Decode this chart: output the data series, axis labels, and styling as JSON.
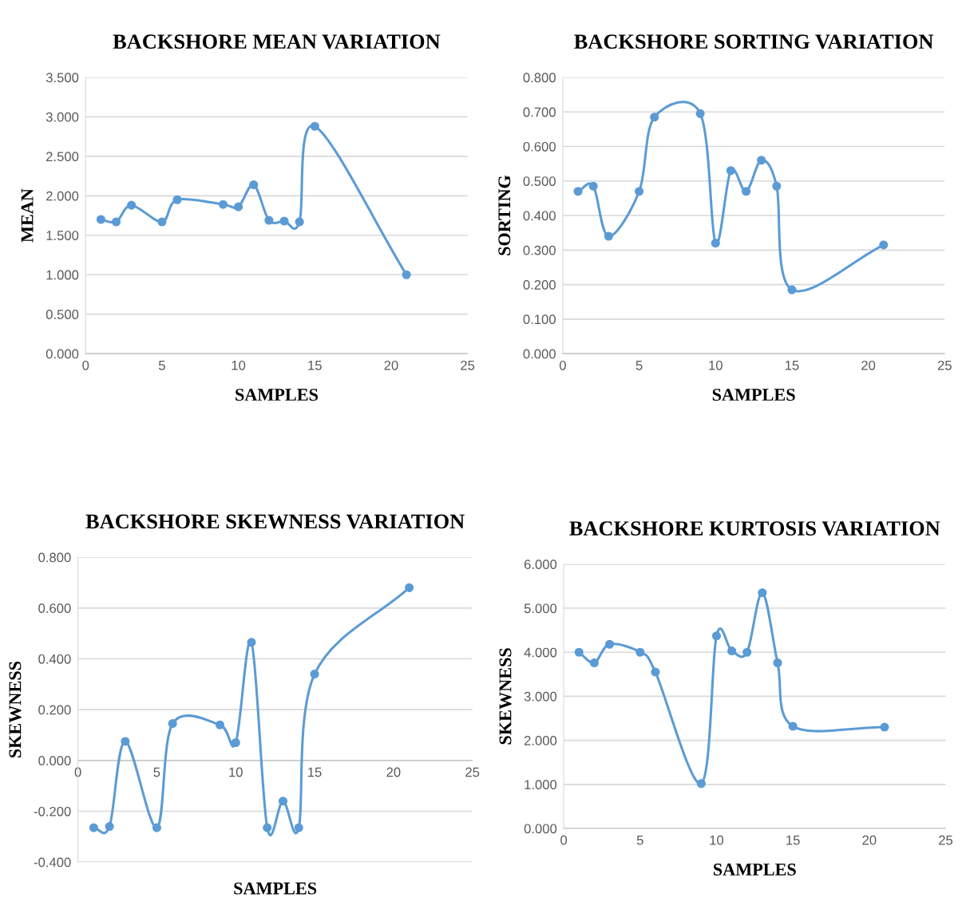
{
  "chart_data": [
    {
      "type": "line",
      "title": "BACKSHORE MEAN VARIATION",
      "xlabel": "SAMPLES",
      "ylabel": "MEAN",
      "x": [
        1,
        2,
        3,
        5,
        6,
        9,
        10,
        11,
        12,
        13,
        14,
        15,
        21
      ],
      "series": [
        {
          "color": "#5b9bd5",
          "values": [
            1.7,
            1.67,
            1.88,
            1.67,
            1.95,
            1.89,
            1.86,
            2.14,
            1.69,
            1.68,
            1.67,
            2.88,
            1.0
          ]
        }
      ],
      "xlim": [
        0,
        25
      ],
      "xticks": [
        0,
        5,
        10,
        15,
        20,
        25
      ],
      "ylim": [
        0,
        3.5
      ],
      "yticks": [
        {
          "value": 0,
          "label": "0.000"
        },
        {
          "value": 0.5,
          "label": "0.500"
        },
        {
          "value": 1,
          "label": "1.000"
        },
        {
          "value": 1.5,
          "label": "1.500"
        },
        {
          "value": 2,
          "label": "2.000"
        },
        {
          "value": 2.5,
          "label": "2.500"
        },
        {
          "value": 3,
          "label": "3.000"
        },
        {
          "value": 3.5,
          "label": "3.500"
        }
      ],
      "grid": "y",
      "marker": "circle",
      "line_style": "solid"
    },
    {
      "type": "line",
      "title": "BACKSHORE SORTING VARIATION",
      "xlabel": "SAMPLES",
      "ylabel": "SORTING",
      "x": [
        1,
        2,
        3,
        5,
        6,
        9,
        10,
        11,
        12,
        13,
        14,
        15,
        21
      ],
      "series": [
        {
          "color": "#5b9bd5",
          "values": [
            0.47,
            0.485,
            0.34,
            0.47,
            0.685,
            0.695,
            0.32,
            0.53,
            0.47,
            0.56,
            0.485,
            0.185,
            0.315
          ]
        }
      ],
      "xlim": [
        0,
        25
      ],
      "xticks": [
        0,
        5,
        10,
        15,
        20,
        25
      ],
      "ylim": [
        0,
        0.8
      ],
      "yticks": [
        {
          "value": 0,
          "label": "0.000"
        },
        {
          "value": 0.1,
          "label": "0.100"
        },
        {
          "value": 0.2,
          "label": "0.200"
        },
        {
          "value": 0.3,
          "label": "0.300"
        },
        {
          "value": 0.4,
          "label": "0.400"
        },
        {
          "value": 0.5,
          "label": "0.500"
        },
        {
          "value": 0.6,
          "label": "0.600"
        },
        {
          "value": 0.7,
          "label": "0.700"
        },
        {
          "value": 0.8,
          "label": "0.800"
        }
      ],
      "grid": "y",
      "marker": "circle",
      "line_style": "solid"
    },
    {
      "type": "line",
      "title": "BACKSHORE SKEWNESS VARIATION",
      "xlabel": "SAMPLES",
      "ylabel": "SKEWNESS",
      "x": [
        1,
        2,
        3,
        5,
        6,
        9,
        10,
        11,
        12,
        13,
        14,
        15,
        21
      ],
      "series": [
        {
          "color": "#5b9bd5",
          "values": [
            -0.265,
            -0.26,
            0.075,
            -0.265,
            0.145,
            0.14,
            0.07,
            0.465,
            -0.265,
            -0.16,
            -0.265,
            0.34,
            0.68
          ]
        }
      ],
      "xlim": [
        0,
        25
      ],
      "xticks": [
        0,
        5,
        10,
        15,
        20,
        25
      ],
      "ylim": [
        -0.4,
        0.8
      ],
      "yticks": [
        {
          "value": -0.4,
          "label": "-0.400"
        },
        {
          "value": -0.2,
          "label": "-0.200"
        },
        {
          "value": 0,
          "label": "0.000"
        },
        {
          "value": 0.2,
          "label": "0.200"
        },
        {
          "value": 0.4,
          "label": "0.400"
        },
        {
          "value": 0.6,
          "label": "0.600"
        },
        {
          "value": 0.8,
          "label": "0.800"
        }
      ],
      "grid": "y",
      "marker": "circle",
      "line_style": "solid"
    },
    {
      "type": "line",
      "title": "BACKSHORE KURTOSIS VARIATION",
      "xlabel": "SAMPLES",
      "ylabel": "SKEWNESS",
      "x": [
        1,
        2,
        3,
        5,
        6,
        9,
        10,
        11,
        12,
        13,
        14,
        15,
        21
      ],
      "series": [
        {
          "color": "#5b9bd5",
          "values": [
            4.0,
            3.76,
            4.18,
            4.0,
            3.55,
            1.02,
            4.37,
            4.03,
            4.0,
            5.35,
            3.76,
            2.32,
            2.3
          ]
        }
      ],
      "xlim": [
        0,
        25
      ],
      "xticks": [
        0,
        5,
        10,
        15,
        20,
        25
      ],
      "ylim": [
        0,
        6
      ],
      "yticks": [
        {
          "value": 0,
          "label": "0.000"
        },
        {
          "value": 1,
          "label": "1.000"
        },
        {
          "value": 2,
          "label": "2.000"
        },
        {
          "value": 3,
          "label": "3.000"
        },
        {
          "value": 4,
          "label": "4.000"
        },
        {
          "value": 5,
          "label": "5.000"
        },
        {
          "value": 6,
          "label": "6.000"
        }
      ],
      "grid": "y",
      "marker": "circle",
      "line_style": "solid"
    }
  ]
}
